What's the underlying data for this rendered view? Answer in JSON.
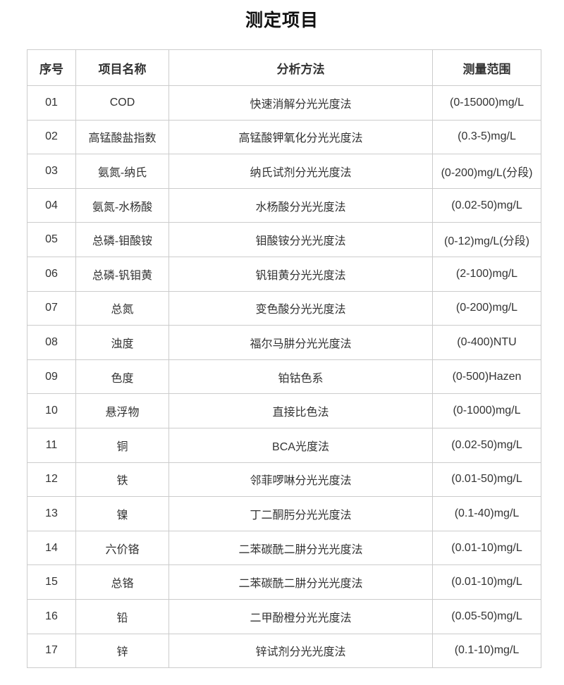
{
  "page": {
    "title": "测定项目"
  },
  "table": {
    "headers": [
      "序号",
      "项目名称",
      "分析方法",
      "测量范围"
    ],
    "rows": [
      [
        "01",
        "COD",
        "快速消解分光光度法",
        "(0-15000)mg/L"
      ],
      [
        "02",
        "高锰酸盐指数",
        "高锰酸钾氧化分光光度法",
        "(0.3-5)mg/L"
      ],
      [
        "03",
        "氨氮-纳氏",
        "纳氏试剂分光光度法",
        "(0-200)mg/L(分段)"
      ],
      [
        "04",
        "氨氮-水杨酸",
        "水杨酸分光光度法",
        "(0.02-50)mg/L"
      ],
      [
        "05",
        "总磷-钼酸铵",
        "钼酸铵分光光度法",
        "(0-12)mg/L(分段)"
      ],
      [
        "06",
        "总磷-钒钼黄",
        "钒钼黄分光光度法",
        "(2-100)mg/L"
      ],
      [
        "07",
        "总氮",
        "变色酸分光光度法",
        "(0-200)mg/L"
      ],
      [
        "08",
        "浊度",
        "福尔马肼分光光度法",
        "(0-400)NTU"
      ],
      [
        "09",
        "色度",
        "铂钴色系",
        "(0-500)Hazen"
      ],
      [
        "10",
        "悬浮物",
        "直接比色法",
        "(0-1000)mg/L"
      ],
      [
        "11",
        "铜",
        "BCA光度法",
        "(0.02-50)mg/L"
      ],
      [
        "12",
        "铁",
        "邻菲啰啉分光光度法",
        "(0.01-50)mg/L"
      ],
      [
        "13",
        "镍",
        "丁二酮肟分光光度法",
        "(0.1-40)mg/L"
      ],
      [
        "14",
        "六价铬",
        "二苯碳酰二肼分光光度法",
        "(0.01-10)mg/L"
      ],
      [
        "15",
        "总铬",
        "二苯碳酰二肼分光光度法",
        "(0.01-10)mg/L"
      ],
      [
        "16",
        "铅",
        "二甲酚橙分光光度法",
        "(0.05-50)mg/L"
      ],
      [
        "17",
        "锌",
        "锌试剂分光光度法",
        "(0.1-10)mg/L"
      ]
    ],
    "colors": {
      "border": "#cccccc",
      "body_text": "#333333",
      "title_text": "#111111",
      "background": "#ffffff"
    }
  }
}
